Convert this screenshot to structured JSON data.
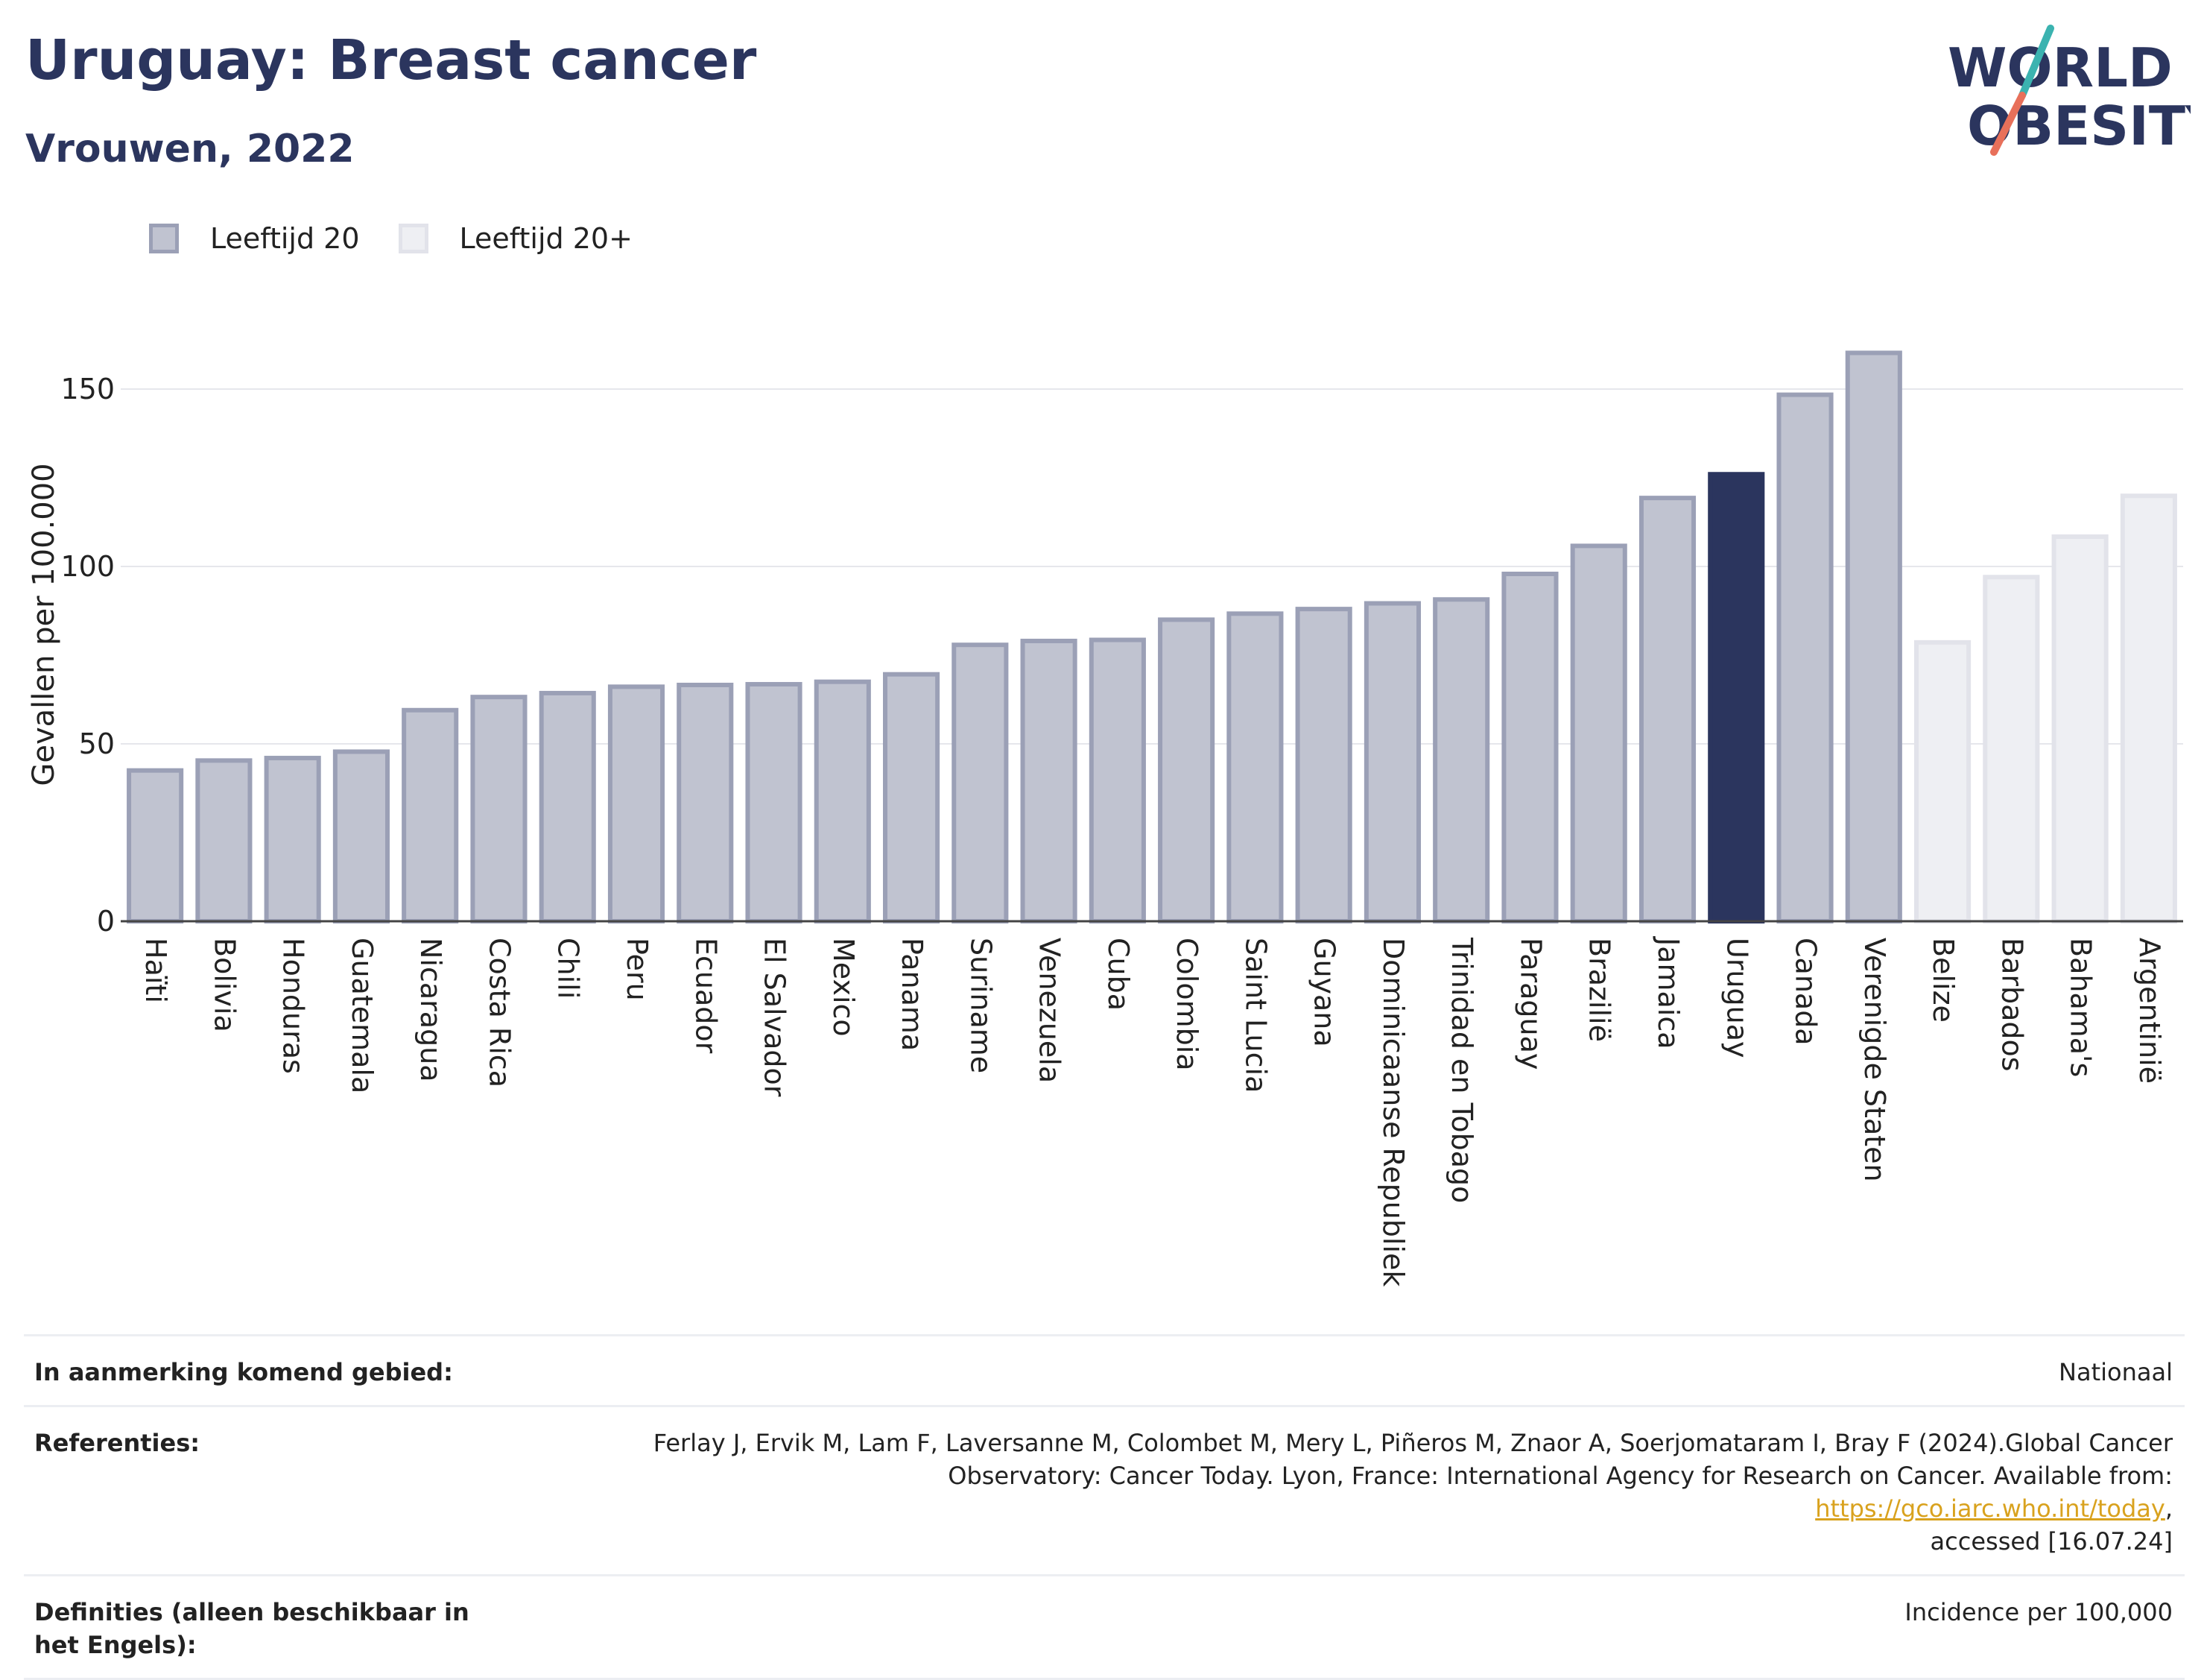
{
  "header": {
    "title": "Uruguay: Breast cancer",
    "subtitle": "Vrouwen, 2022"
  },
  "logo": {
    "line1": "WORLD",
    "line2": "OBESITY"
  },
  "legend": [
    {
      "label": "Leeftijd 20",
      "color": "#c0c3d0",
      "border": "#9ba0b6"
    },
    {
      "label": "Leeftijd 20+",
      "color": "#eeeff3",
      "border": "#e2e3ea"
    }
  ],
  "chart_data": {
    "type": "bar",
    "ylabel": "Gevallen per 100.000",
    "xlabel": "",
    "ylim": [
      0,
      170
    ],
    "yticks": [
      0,
      50,
      100,
      150
    ],
    "grid": true,
    "legend_position": "top-left",
    "highlight": "Uruguay",
    "colors": {
      "age20": "#c0c3d0",
      "age20_border": "#9ba0b6",
      "age20plus": "#eeeff3",
      "age20plus_border": "#e2e3ea",
      "highlight": "#2b355e"
    },
    "categories": [
      "Haïti",
      "Bolivia",
      "Honduras",
      "Guatemala",
      "Nicaragua",
      "Costa Rica",
      "Chili",
      "Peru",
      "Ecuador",
      "El Salvador",
      "Mexico",
      "Panama",
      "Suriname",
      "Venezuela",
      "Cuba",
      "Colombia",
      "Saint Lucia",
      "Guyana",
      "Dominicaanse Republiek",
      "Trinidad en Tobago",
      "Paraguay",
      "Brazilië",
      "Jamaica",
      "Uruguay",
      "Canada",
      "Verenigde Staten",
      "Belize",
      "Barbados",
      "Bahama's",
      "Argentinië"
    ],
    "values": [
      42.5,
      45.3,
      46.0,
      47.8,
      59.5,
      63.2,
      64.3,
      66.1,
      66.6,
      66.8,
      67.5,
      69.6,
      77.9,
      79.0,
      79.3,
      85.0,
      86.7,
      88.0,
      89.6,
      90.7,
      97.9,
      105.8,
      119.3,
      126.0,
      148.4,
      160.2,
      78.6,
      97.0,
      108.4,
      119.9
    ],
    "series_group": [
      "20",
      "20",
      "20",
      "20",
      "20",
      "20",
      "20",
      "20",
      "20",
      "20",
      "20",
      "20",
      "20",
      "20",
      "20",
      "20",
      "20",
      "20",
      "20",
      "20",
      "20",
      "20",
      "20",
      "20",
      "20",
      "20",
      "20+",
      "20+",
      "20+",
      "20+"
    ]
  },
  "info": {
    "eligible_label": "In aanmerking komend gebied:",
    "eligible_value": "Nationaal",
    "references_label": "Referenties:",
    "references_line1": "Ferlay J, Ervik M, Lam F, Laversanne M, Colombet M, Mery L, Piñeros M, Znaor A, Soerjomataram I, Bray F (2024).Global Cancer",
    "references_line2_pre": "Observatory: Cancer Today. Lyon, France: International Agency for Research on Cancer. Available from: ",
    "references_link": "https://gco.iarc.who.int/today",
    "references_line2_post": ",",
    "references_line3": "accessed [16.07.24]",
    "definitions_label": "Definities (alleen beschikbaar in het Engels):",
    "definitions_value": "Incidence per 100,000"
  }
}
